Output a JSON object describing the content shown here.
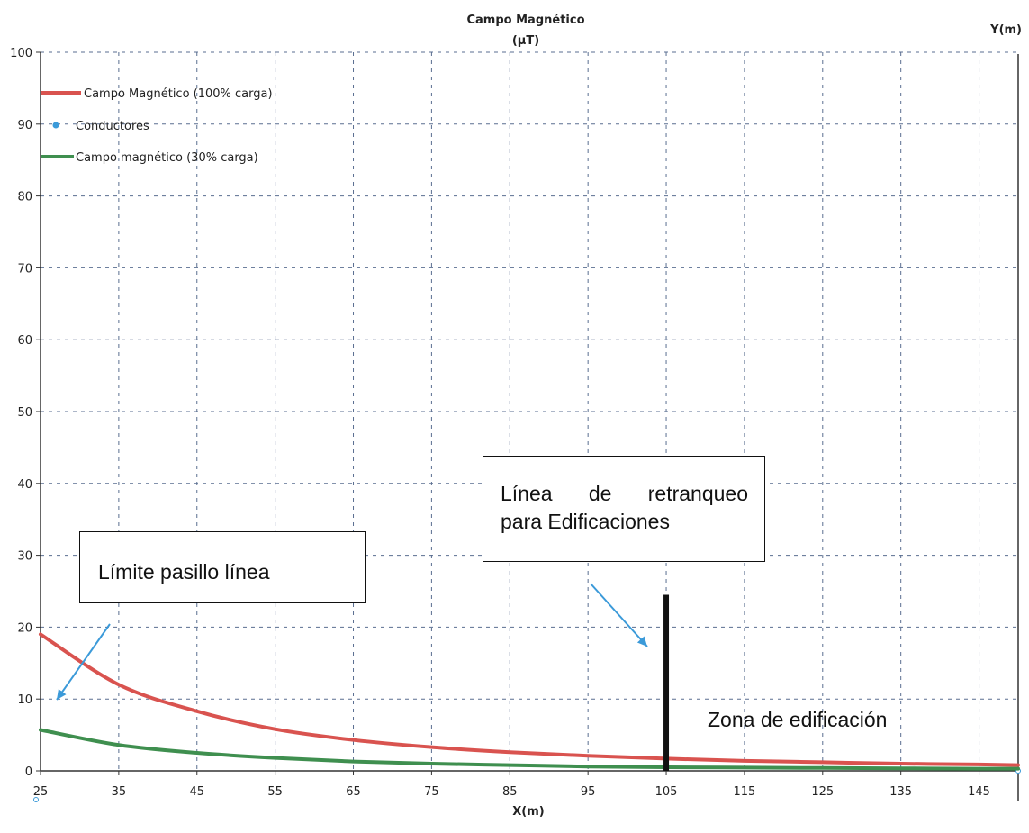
{
  "chart_data": {
    "type": "line",
    "title": "Campo Magnético",
    "subtitle": "(µT)",
    "xlabel": "X(m)",
    "ylabel": "Y(m)",
    "xlim": [
      25,
      150
    ],
    "ylim": [
      0,
      100
    ],
    "xticks": [
      25,
      35,
      45,
      55,
      65,
      75,
      85,
      95,
      105,
      115,
      125,
      135,
      145
    ],
    "yticks": [
      0,
      10,
      20,
      30,
      40,
      50,
      60,
      70,
      80,
      90,
      100
    ],
    "grid": true,
    "legend_position": "top-left",
    "series": [
      {
        "name": "Campo Magnético (100% carga)",
        "color": "#d9534f",
        "x": [
          25,
          35,
          45,
          55,
          65,
          75,
          85,
          95,
          105,
          115,
          125,
          135,
          145,
          150
        ],
        "y": [
          19.0,
          12.0,
          8.3,
          5.8,
          4.3,
          3.3,
          2.6,
          2.1,
          1.7,
          1.4,
          1.2,
          1.0,
          0.9,
          0.8
        ]
      },
      {
        "name": "Conductores",
        "color": "#3b9ad9",
        "marker_only": true,
        "x": [],
        "y": []
      },
      {
        "name": "Campo magnético (30% carga)",
        "color": "#3f8f4f",
        "x": [
          25,
          35,
          45,
          55,
          65,
          75,
          85,
          95,
          105,
          115,
          125,
          135,
          145,
          150
        ],
        "y": [
          5.7,
          3.6,
          2.5,
          1.8,
          1.3,
          1.0,
          0.8,
          0.6,
          0.5,
          0.45,
          0.4,
          0.35,
          0.3,
          0.3
        ]
      }
    ],
    "setback_line": {
      "x": 105,
      "y_top": 24.5
    },
    "annotations": {
      "limite": "Límite pasillo línea",
      "retranqueo_line1_word1": "Línea",
      "retranqueo_line1_word2": "de",
      "retranqueo_line1_word3": "retranqueo",
      "retranqueo_line2": "para Edificaciones",
      "zona": "Zona de edificación"
    },
    "arrow_color": "#3b9ad9"
  }
}
